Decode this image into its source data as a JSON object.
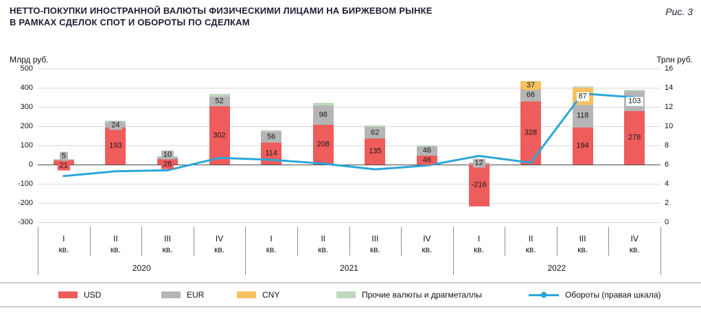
{
  "header": {
    "title_line1": "НЕТТО-ПОКУПКИ ИНОСТРАННОЙ ВАЛЮТЫ ФИЗИЧЕСКИМИ ЛИЦАМИ НА БИРЖЕВОМ РЫНКЕ",
    "title_line2": "В РАМКАХ СДЕЛОК СПОТ И ОБОРОТЫ ПО СДЕЛКАМ",
    "figure_ref": "Рис. 3"
  },
  "axes": {
    "left_unit": "Млрд руб.",
    "right_unit": "Трлн руб."
  },
  "chart_data": {
    "type": "bar",
    "subtype": "stacked-bar-with-line",
    "title": "Нетто-покупки иностранной валюты физическими лицами на биржевом рынке в рамках сделок спот и обороты по сделкам",
    "quarter_labels": [
      "I",
      "II",
      "III",
      "IV",
      "I",
      "II",
      "III",
      "IV",
      "I",
      "II",
      "III",
      "IV"
    ],
    "quarter_suffix": "кв.",
    "category_groups": [
      {
        "label": "2020",
        "span": 4
      },
      {
        "label": "2021",
        "span": 4
      },
      {
        "label": "2022",
        "span": 4
      }
    ],
    "left_axis": {
      "label": "Млрд руб.",
      "min": -300,
      "max": 500,
      "step": 100
    },
    "right_axis": {
      "label": "Трлн руб.",
      "min": 0,
      "max": 16,
      "step": 2
    },
    "series": [
      {
        "id": "usd",
        "name": "USD",
        "color": "#ee5c5c",
        "show_labels": true,
        "values": [
          21,
          193,
          28,
          302,
          114,
          208,
          135,
          46,
          -216,
          328,
          194,
          278
        ]
      },
      {
        "id": "eur",
        "name": "EUR",
        "color": "#b5b5b5",
        "show_labels": true,
        "values": [
          5,
          24,
          10,
          52,
          56,
          98,
          62,
          46,
          12,
          66,
          118,
          103
        ]
      },
      {
        "id": "cny",
        "name": "CNY",
        "color": "#f7c161",
        "show_labels": true,
        "values": [
          0,
          0,
          0,
          0,
          0,
          0,
          0,
          0,
          0,
          37,
          87,
          0
        ]
      },
      {
        "id": "other",
        "name": "Прочие валюты и драгметаллы",
        "color": "#bed8bd",
        "show_labels": false,
        "values": [
          3,
          12,
          5,
          15,
          9,
          15,
          7,
          8,
          0,
          6,
          10,
          8
        ]
      }
    ],
    "line_series": {
      "id": "turnovers",
      "name": "Обороты (правая шкала)",
      "color": "#2ba6d9",
      "axis": "right",
      "values": [
        4.8,
        5.3,
        5.4,
        6.7,
        6.5,
        6.1,
        5.5,
        5.9,
        6.9,
        6.2,
        13.4,
        13.0
      ]
    },
    "label_white_bg": [
      [
        2,
        10
      ],
      [
        1,
        11
      ]
    ],
    "grid": true,
    "legend_position": "bottom"
  }
}
